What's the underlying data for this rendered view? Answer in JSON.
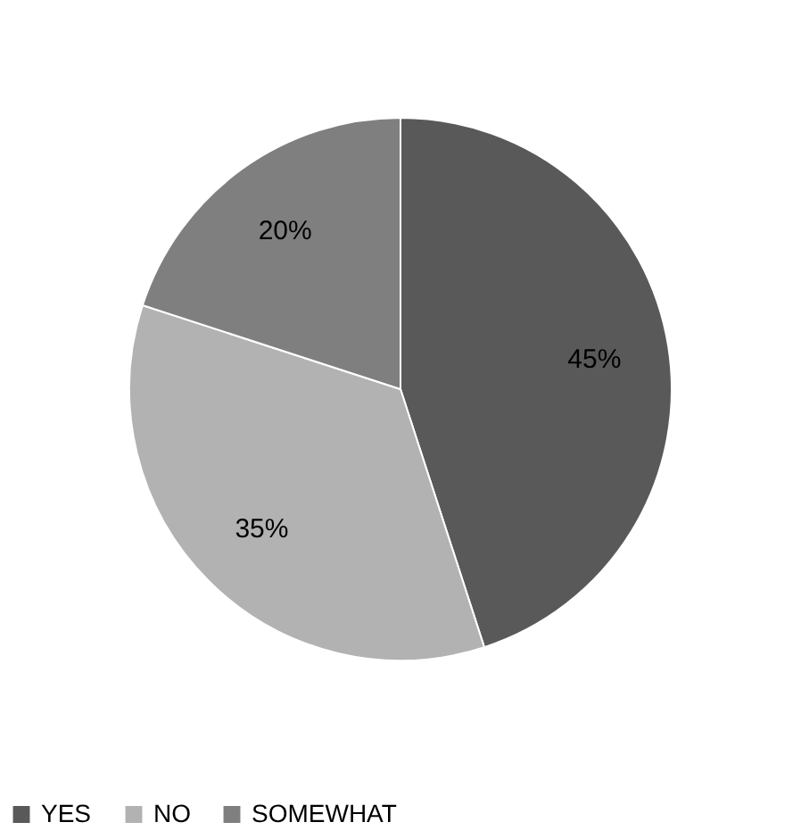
{
  "chart_data": {
    "type": "pie",
    "categories": [
      "YES",
      "NO",
      "SOMEWHAT"
    ],
    "values": [
      45,
      35,
      20
    ],
    "colors": [
      "#595959",
      "#b2b2b2",
      "#7f7f7f"
    ],
    "value_labels": [
      "45%",
      "35%",
      "20%"
    ],
    "legend": "bottom"
  }
}
